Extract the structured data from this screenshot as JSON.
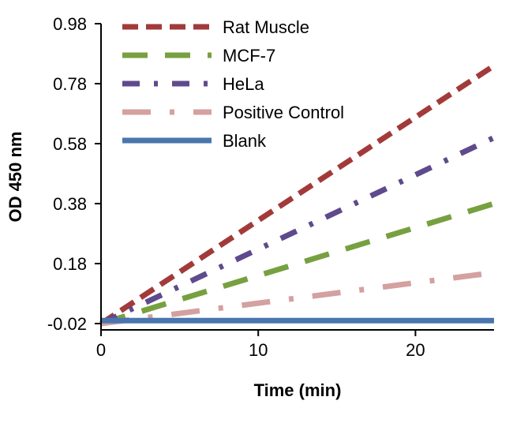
{
  "chart_data": {
    "type": "line",
    "xlabel": "Time (min)",
    "ylabel": "OD 450 nm",
    "xlim": [
      0,
      25
    ],
    "ylim": [
      -0.02,
      0.98
    ],
    "x_ticks": [
      0,
      10,
      20
    ],
    "y_ticks": [
      -0.02,
      0.18,
      0.38,
      0.58,
      0.78,
      0.98
    ],
    "y_tick_labels": [
      "-0.02",
      "0.18",
      "0.38",
      "0.58",
      "0.78",
      "0.98"
    ],
    "grid": false,
    "legend_position": "top-left",
    "series": [
      {
        "name": "Rat Muscle",
        "color": "#a33a3a",
        "dash": "long-dash",
        "x": [
          0,
          25
        ],
        "y": [
          -0.02,
          0.84
        ]
      },
      {
        "name": "MCF-7",
        "color": "#77a040",
        "dash": "long-dash-gap",
        "x": [
          0,
          25
        ],
        "y": [
          -0.02,
          0.38
        ]
      },
      {
        "name": "HeLa",
        "color": "#5e4a8c",
        "dash": "dash-dot",
        "x": [
          0,
          25
        ],
        "y": [
          -0.02,
          0.6
        ]
      },
      {
        "name": "Positive Control",
        "color": "#d4a0a0",
        "dash": "long-dash-dot",
        "x": [
          0,
          25
        ],
        "y": [
          -0.02,
          0.15
        ]
      },
      {
        "name": "Blank",
        "color": "#4a76ae",
        "dash": "solid",
        "x": [
          0,
          25
        ],
        "y": [
          -0.01,
          -0.01
        ]
      }
    ]
  }
}
